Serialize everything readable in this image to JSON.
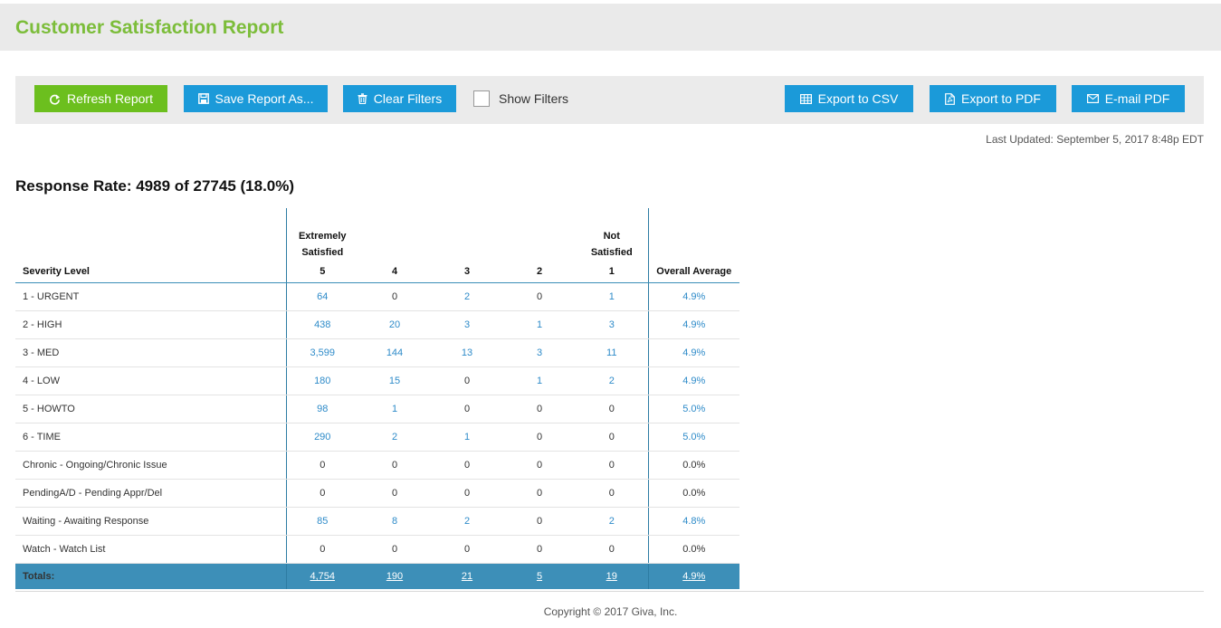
{
  "header": {
    "title": "Customer Satisfaction Report"
  },
  "toolbar": {
    "refresh_label": "Refresh Report",
    "save_label": "Save Report As...",
    "clear_label": "Clear Filters",
    "show_filters_label": "Show Filters",
    "export_csv_label": "Export to CSV",
    "export_pdf_label": "Export to PDF",
    "email_pdf_label": "E-mail PDF"
  },
  "last_updated": "Last Updated: September 5, 2017 8:48p EDT",
  "response_rate": "Response Rate: 4989 of 27745 (18.0%)",
  "table": {
    "header_label": "Severity Level",
    "extremely_line1": "Extremely",
    "extremely_line2": "Satisfied",
    "not_line1": "Not",
    "not_line2": "Satisfied",
    "col_5": "5",
    "col_4": "4",
    "col_3": "3",
    "col_2": "2",
    "col_1": "1",
    "col_avg": "Overall Average",
    "rows": [
      {
        "label": "1 - URGENT",
        "v5": "64",
        "v4": "0",
        "v3": "2",
        "v2": "0",
        "v1": "1",
        "avg": "4.9%"
      },
      {
        "label": "2 - HIGH",
        "v5": "438",
        "v4": "20",
        "v3": "3",
        "v2": "1",
        "v1": "3",
        "avg": "4.9%"
      },
      {
        "label": "3 - MED",
        "v5": "3,599",
        "v4": "144",
        "v3": "13",
        "v2": "3",
        "v1": "11",
        "avg": "4.9%"
      },
      {
        "label": "4 - LOW",
        "v5": "180",
        "v4": "15",
        "v3": "0",
        "v2": "1",
        "v1": "2",
        "avg": "4.9%"
      },
      {
        "label": "5 - HOWTO",
        "v5": "98",
        "v4": "1",
        "v3": "0",
        "v2": "0",
        "v1": "0",
        "avg": "5.0%"
      },
      {
        "label": "6 - TIME",
        "v5": "290",
        "v4": "2",
        "v3": "1",
        "v2": "0",
        "v1": "0",
        "avg": "5.0%"
      },
      {
        "label": "Chronic - Ongoing/Chronic Issue",
        "v5": "0",
        "v4": "0",
        "v3": "0",
        "v2": "0",
        "v1": "0",
        "avg": "0.0%"
      },
      {
        "label": "PendingA/D - Pending Appr/Del",
        "v5": "0",
        "v4": "0",
        "v3": "0",
        "v2": "0",
        "v1": "0",
        "avg": "0.0%"
      },
      {
        "label": "Waiting - Awaiting Response",
        "v5": "85",
        "v4": "8",
        "v3": "2",
        "v2": "0",
        "v1": "2",
        "avg": "4.8%"
      },
      {
        "label": "Watch - Watch List",
        "v5": "0",
        "v4": "0",
        "v3": "0",
        "v2": "0",
        "v1": "0",
        "avg": "0.0%"
      }
    ],
    "totals": {
      "label": "Totals:",
      "v5": "4,754",
      "v4": "190",
      "v3": "21",
      "v2": "5",
      "v1": "19",
      "avg": "4.9%"
    }
  },
  "footer": {
    "copyright": "Copyright © 2017 Giva, Inc."
  },
  "colors": {
    "brand_green": "#7cbd3a",
    "button_green": "#6cbf1e",
    "button_blue": "#1b9ad9",
    "link_blue": "#2e8bc9",
    "totals_bg": "#3d8fb8"
  },
  "icons": {
    "refresh": "refresh-icon",
    "save": "save-icon",
    "clear": "trash-icon",
    "csv": "table-icon",
    "pdf": "pdf-file-icon",
    "email": "envelope-icon"
  }
}
